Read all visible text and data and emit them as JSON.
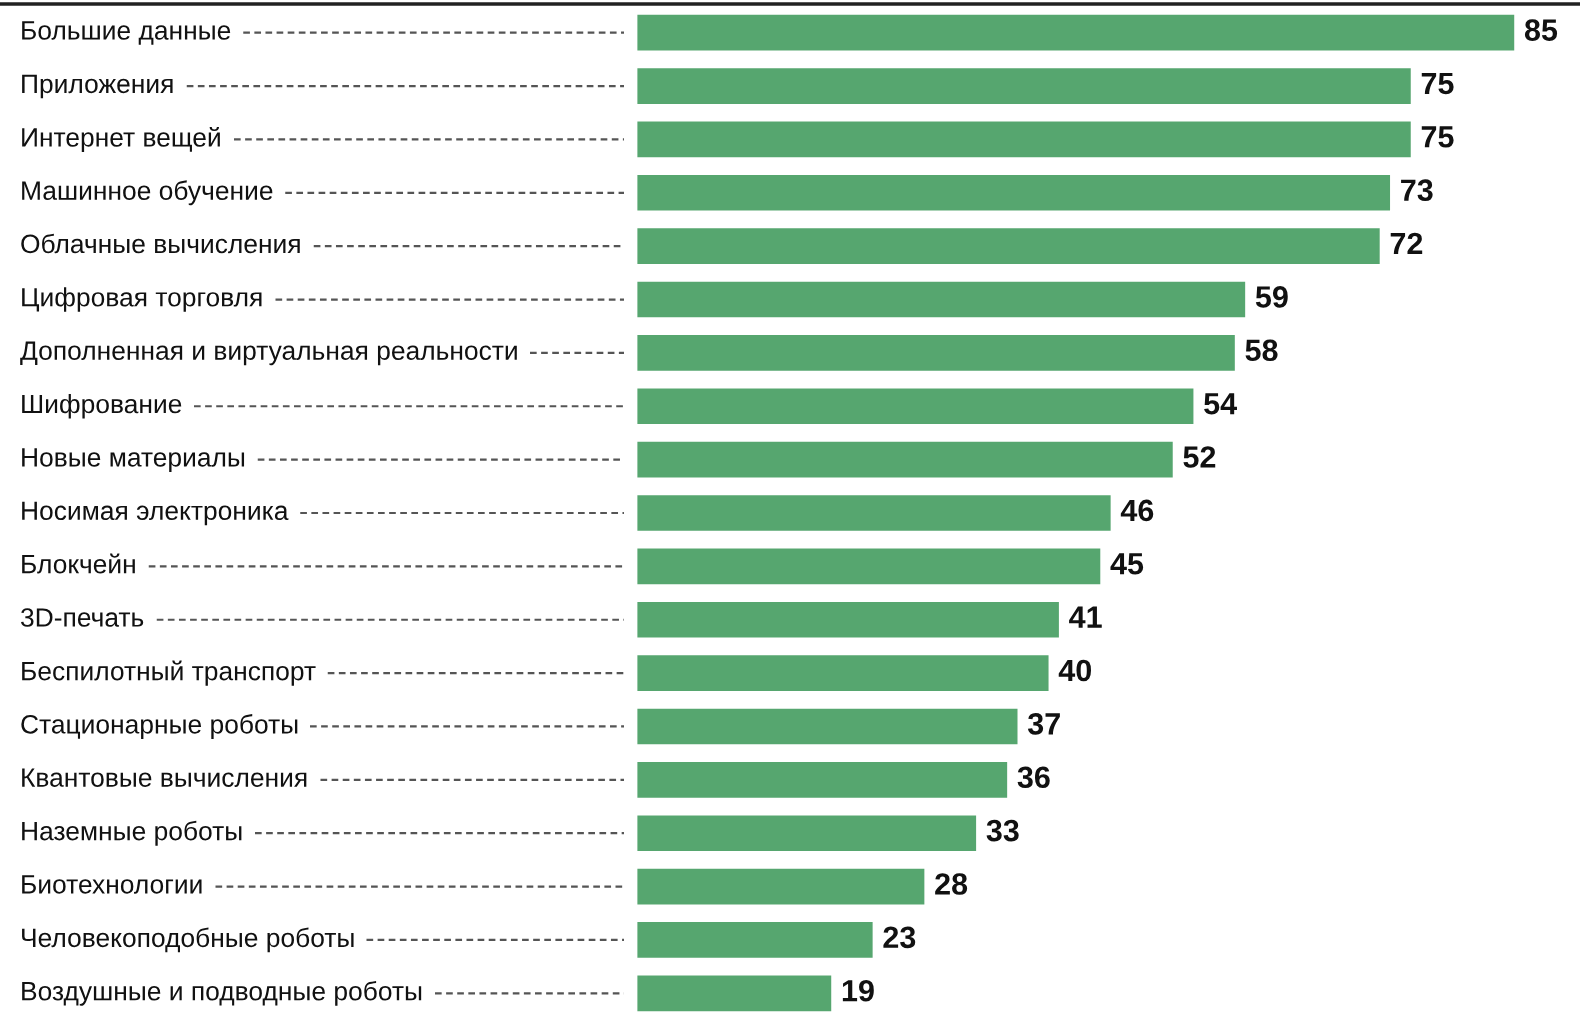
{
  "chart_data": {
    "type": "bar",
    "orientation": "horizontal",
    "data_labels": true,
    "color": "#56a66f",
    "categories": [
      "Большие данные",
      "Приложения",
      "Интернет вещей",
      "Машинное обучение",
      "Облачные вычисления",
      "Цифровая торговля",
      "Дополненная и виртуальная реальности",
      "Шифрование",
      "Новые материалы",
      "Носимая электроника",
      "Блокчейн",
      "3D-печать",
      "Беспилотный транспорт",
      "Стационарные роботы",
      "Квантовые вычисления",
      "Наземные роботы",
      "Биотехнологии",
      "Человекоподобные роботы",
      "Воздушные и подводные роботы"
    ],
    "values": [
      85,
      75,
      75,
      73,
      72,
      59,
      58,
      54,
      52,
      46,
      45,
      41,
      40,
      37,
      36,
      33,
      28,
      23,
      19
    ]
  }
}
